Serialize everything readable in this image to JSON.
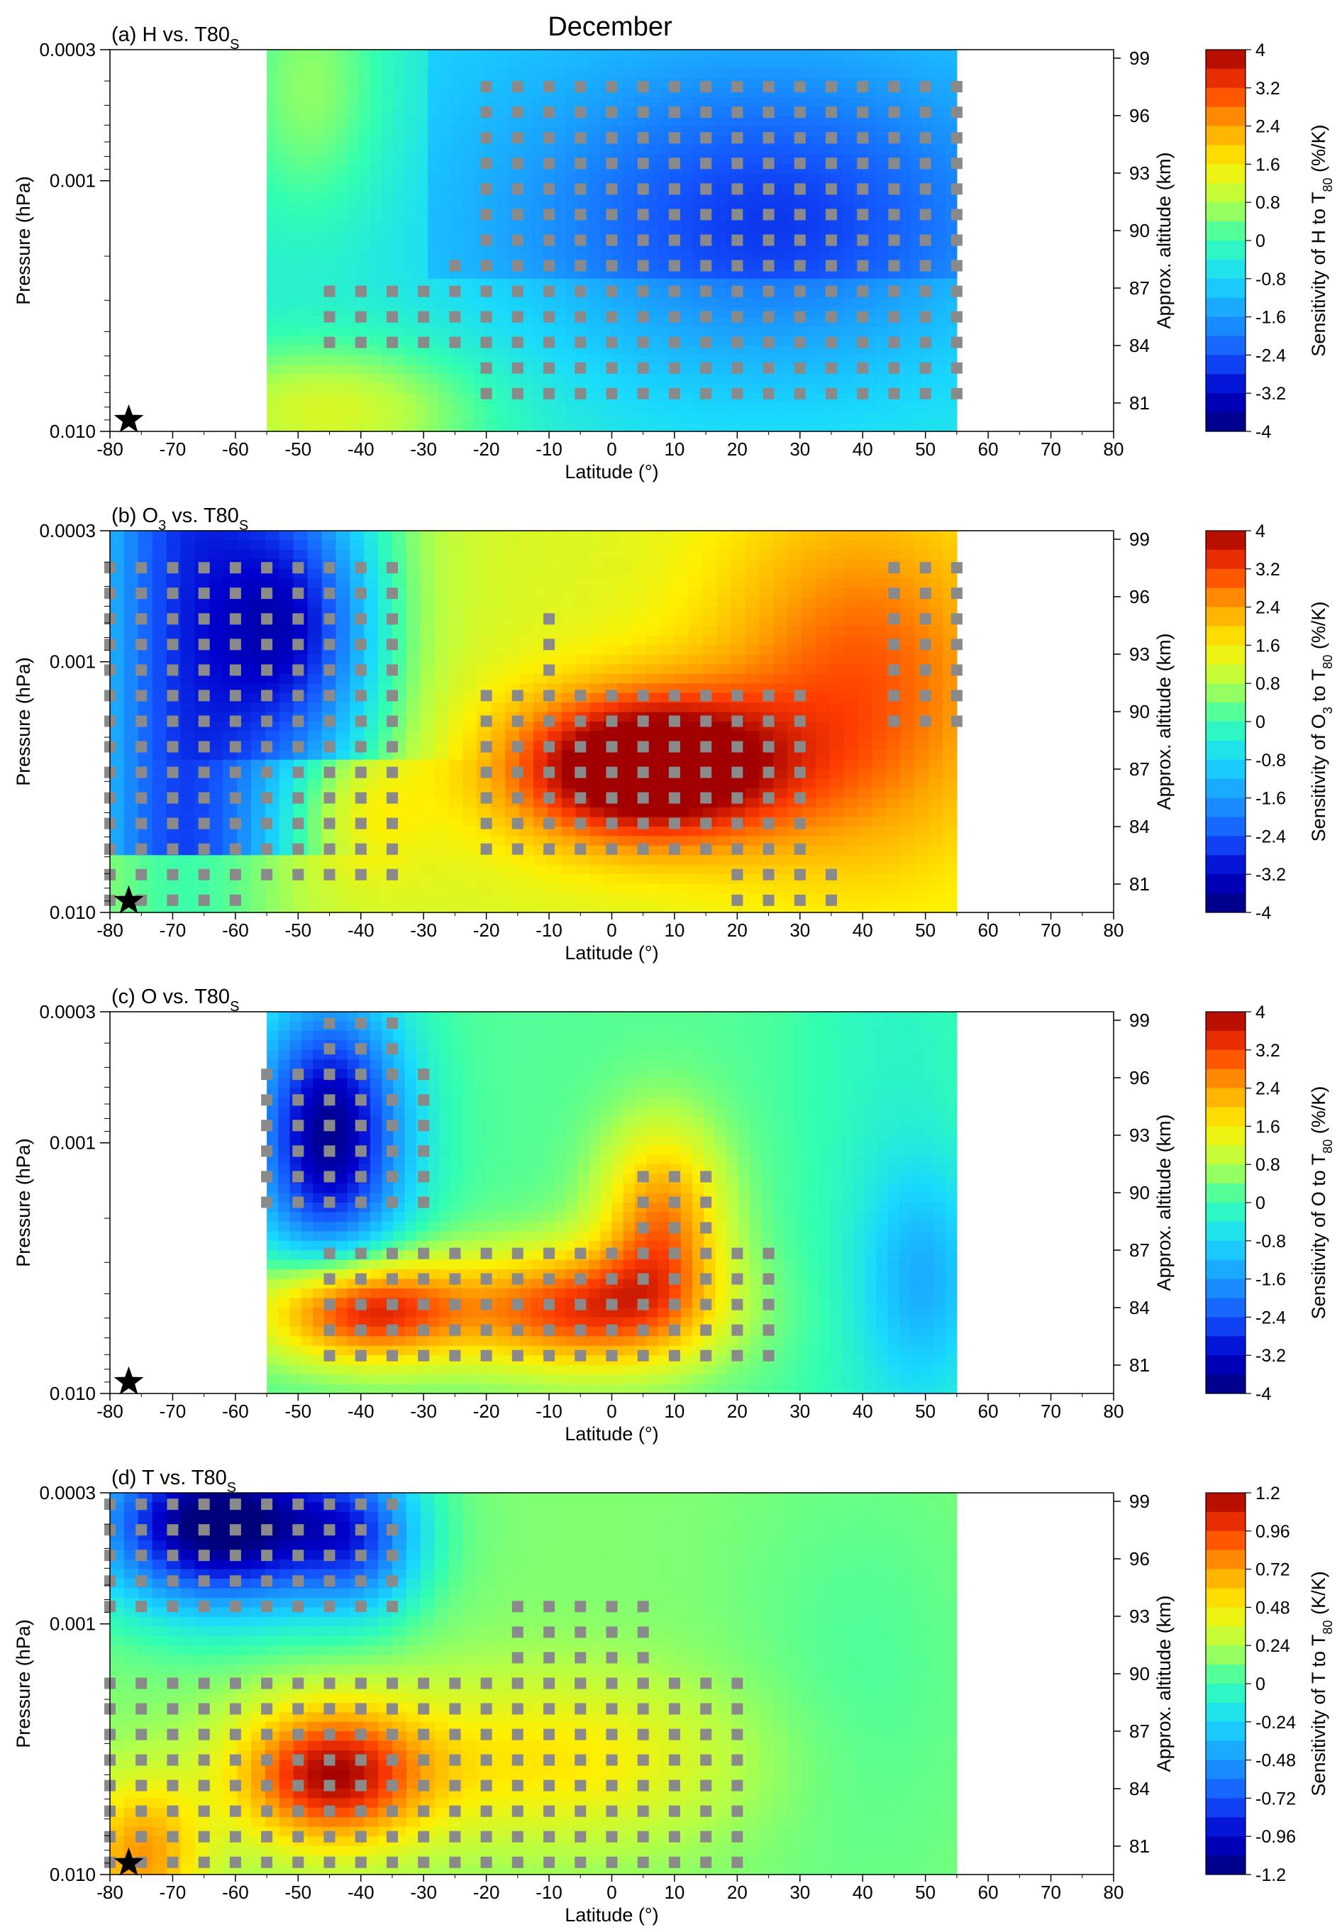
{
  "figure": {
    "suptitle": "December"
  },
  "chart_data": [
    {
      "type": "heatmap",
      "title_main": "(a) H vs. T80",
      "title_sub": "S",
      "xlabel": "Latitude (°)",
      "ylabel": "Pressure (hPa)",
      "y2label": "Approx. altitude (km)",
      "colorbar_label": "Sensitivity of H to T80 (%/K)",
      "colorbar_label_main": "Sensitivity of H to T",
      "colorbar_label_sub": "80",
      "colorbar_label_tail": " (%/K)",
      "x_ticks": [
        "-80",
        "-70",
        "-60",
        "-50",
        "-40",
        "-30",
        "-20",
        "-10",
        "0",
        "10",
        "20",
        "30",
        "40",
        "50",
        "60",
        "70",
        "80"
      ],
      "xlim": [
        -80,
        80
      ],
      "y_ticks": [
        "0.0003",
        "0.001",
        "0.010"
      ],
      "ylim": [
        0.01,
        0.0003
      ],
      "yscale": "log",
      "y2_ticks": [
        "99",
        "96",
        "93",
        "90",
        "87",
        "84",
        "81"
      ],
      "data_lat_range": [
        -55,
        55
      ],
      "colorbar_ticks": [
        "4",
        "3.2",
        "2.4",
        "1.6",
        "0.8",
        "0",
        "-0.8",
        "-1.6",
        "-2.4",
        "-3.2",
        "-4"
      ],
      "colorbar_range": [
        -4,
        4
      ],
      "marker": "star at -77°, 0.009 hPa"
    },
    {
      "type": "heatmap",
      "title_main": "(b) O",
      "title_mid": "3",
      "title_tail": " vs. T80",
      "title_sub": "S",
      "xlabel": "Latitude (°)",
      "ylabel": "Pressure (hPa)",
      "y2label": "Approx. altitude (km)",
      "colorbar_label_main": "Sensitivity of O",
      "colorbar_label_mid": "3",
      "colorbar_label_tail2": " to T",
      "colorbar_label_sub": "80",
      "colorbar_label_tail": " (%/K)",
      "x_ticks": [
        "-80",
        "-70",
        "-60",
        "-50",
        "-40",
        "-30",
        "-20",
        "-10",
        "0",
        "10",
        "20",
        "30",
        "40",
        "50",
        "60",
        "70",
        "80"
      ],
      "xlim": [
        -80,
        80
      ],
      "y_ticks": [
        "0.0003",
        "0.001",
        "0.010"
      ],
      "ylim": [
        0.01,
        0.0003
      ],
      "yscale": "log",
      "y2_ticks": [
        "99",
        "96",
        "93",
        "90",
        "87",
        "84",
        "81"
      ],
      "data_lat_range": [
        -80,
        55
      ],
      "colorbar_ticks": [
        "4",
        "3.2",
        "2.4",
        "1.6",
        "0.8",
        "0",
        "-0.8",
        "-1.6",
        "-2.4",
        "-3.2",
        "-4"
      ],
      "colorbar_range": [
        -4,
        4
      ],
      "marker": "star at -77°, 0.009 hPa"
    },
    {
      "type": "heatmap",
      "title_main": "(c) O vs. T80",
      "title_sub": "S",
      "xlabel": "Latitude (°)",
      "ylabel": "Pressure (hPa)",
      "y2label": "Approx. altitude (km)",
      "colorbar_label_main": "Sensitivity of O to T",
      "colorbar_label_sub": "80",
      "colorbar_label_tail": " (%/K)",
      "x_ticks": [
        "-80",
        "-70",
        "-60",
        "-50",
        "-40",
        "-30",
        "-20",
        "-10",
        "0",
        "10",
        "20",
        "30",
        "40",
        "50",
        "60",
        "70",
        "80"
      ],
      "xlim": [
        -80,
        80
      ],
      "y_ticks": [
        "0.0003",
        "0.001",
        "0.010"
      ],
      "ylim": [
        0.01,
        0.0003
      ],
      "yscale": "log",
      "y2_ticks": [
        "99",
        "96",
        "93",
        "90",
        "87",
        "84",
        "81"
      ],
      "data_lat_range": [
        -55,
        55
      ],
      "colorbar_ticks": [
        "4",
        "3.2",
        "2.4",
        "1.6",
        "0.8",
        "0",
        "-0.8",
        "-1.6",
        "-2.4",
        "-3.2",
        "-4"
      ],
      "colorbar_range": [
        -4,
        4
      ],
      "marker": "star at -77°, 0.009 hPa"
    },
    {
      "type": "heatmap",
      "title_main": "(d) T vs. T80",
      "title_sub": "S",
      "xlabel": "Latitude (°)",
      "ylabel": "Pressure (hPa)",
      "y2label": "Approx. altitude (km)",
      "colorbar_label_main": "Sensitivity of T to T",
      "colorbar_label_sub": "80",
      "colorbar_label_tail": " (K/K)",
      "x_ticks": [
        "-80",
        "-70",
        "-60",
        "-50",
        "-40",
        "-30",
        "-20",
        "-10",
        "0",
        "10",
        "20",
        "30",
        "40",
        "50",
        "60",
        "70",
        "80"
      ],
      "xlim": [
        -80,
        80
      ],
      "y_ticks": [
        "0.0003",
        "0.001",
        "0.010"
      ],
      "ylim": [
        0.01,
        0.0003
      ],
      "yscale": "log",
      "y2_ticks": [
        "99",
        "96",
        "93",
        "90",
        "87",
        "84",
        "81"
      ],
      "data_lat_range": [
        -80,
        55
      ],
      "colorbar_ticks": [
        "1.2",
        "0.96",
        "0.72",
        "0.48",
        "0.24",
        "0",
        "-0.24",
        "-0.48",
        "-0.72",
        "-0.96",
        "-1.2"
      ],
      "colorbar_range": [
        -1.2,
        1.2
      ],
      "marker": "star at -77°, 0.009 hPa"
    }
  ]
}
